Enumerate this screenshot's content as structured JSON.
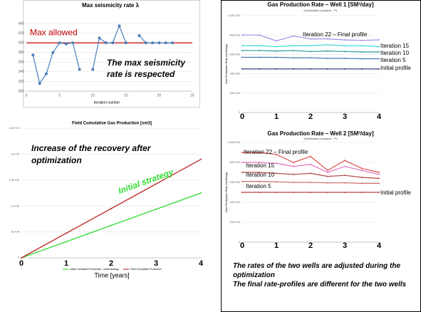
{
  "chart_data": [
    {
      "type": "line",
      "title": "Max seismicity rate λ",
      "x_label": "Iteration number",
      "x": [
        1,
        2,
        3,
        4,
        5,
        6,
        7,
        8,
        9,
        10,
        11,
        12,
        13,
        14,
        15,
        16,
        17,
        18,
        19,
        20,
        21,
        22
      ],
      "values": [
        375,
        316,
        336,
        380,
        400,
        398,
        400,
        345,
        null,
        345,
        410,
        400,
        400,
        435,
        400,
        null,
        415,
        400,
        400,
        400,
        400,
        400
      ],
      "color": "#4a7ebb",
      "xlim": [
        0,
        25
      ],
      "xticks": [
        0,
        5,
        10,
        15,
        20,
        25
      ],
      "ylim": [
        300,
        440
      ],
      "yticks": [
        300,
        320,
        340,
        360,
        380,
        400,
        420,
        440
      ],
      "grid": true,
      "threshold": {
        "label": "Max allowed",
        "value": 400,
        "color": "#c00000"
      },
      "annotations": [
        "The max seismicity rate  is respected"
      ]
    },
    {
      "type": "line",
      "title": "Field Cumulative Gas Production [sm3]",
      "x_label": "Time [years]",
      "x": [
        0,
        1,
        2,
        3,
        4
      ],
      "xlim": [
        0,
        4
      ],
      "xticks": [
        0,
        1,
        2,
        3,
        4
      ],
      "ylim": [
        0,
        2500000000
      ],
      "yticks": [
        0,
        {
          "value": 500000000,
          "label": "5e+08"
        },
        {
          "value": 1000000000,
          "label": "1e+09"
        },
        {
          "value": 1500000000,
          "label": "1.5e+09"
        },
        {
          "value": 2000000000,
          "label": "2e+09"
        },
        {
          "value": 2500000000,
          "label": "2.5e+09"
        }
      ],
      "grid": true,
      "legend": "bottom",
      "series": [
        {
          "name": "Initial Cumulative Production - initial strategy",
          "color": "#33dd33",
          "values": [
            0,
            312500000,
            625000000,
            937500000,
            1250000000
          ]
        },
        {
          "name": "Field Cumulative Production",
          "color": "#c03030",
          "values": [
            0,
            475000000,
            950000000,
            1425000000,
            1900000000
          ]
        }
      ],
      "annotations": [
        "Increase of the recovery after optimization",
        "Initial strategy"
      ]
    },
    {
      "type": "line",
      "title": "Gas Production Rate – Well 1 [SM³/day]",
      "subtitle": "Optimization progress - P1",
      "y_label": "Gas Production Rate (sm3/day)",
      "x": [
        0,
        0.5,
        1,
        1.5,
        2,
        2.5,
        3,
        3.5,
        4
      ],
      "xlim": [
        0,
        4
      ],
      "xticks": [
        0,
        1,
        2,
        3,
        4
      ],
      "ylim": [
        0,
        1000000
      ],
      "yticks": [
        0,
        {
          "value": 200000,
          "label": "200,000"
        },
        {
          "value": 400000,
          "label": "400,000"
        },
        {
          "value": 600000,
          "label": "600,000"
        },
        {
          "value": 800000,
          "label": "800,000"
        },
        {
          "value": 1000000,
          "label": "1,000,000"
        }
      ],
      "grid": true,
      "series": [
        {
          "name": "Iteration 22 – Final profile",
          "color": "#9b8fe8",
          "values": [
            800000,
            800000,
            740000,
            790000,
            760000,
            760000,
            750000,
            745000,
            750000
          ]
        },
        {
          "name": "Iteration 15",
          "color": "#40d8d8",
          "values": [
            690000,
            690000,
            680000,
            690000,
            690000,
            700000,
            690000,
            690000,
            680000
          ]
        },
        {
          "name": "Iteration 10",
          "color": "#2a9a9a",
          "values": [
            640000,
            640000,
            635000,
            640000,
            630000,
            635000,
            630000,
            625000,
            625000
          ]
        },
        {
          "name": "Iteration 5",
          "color": "#4a7abf",
          "values": [
            570000,
            570000,
            570000,
            565000,
            565000,
            560000,
            560000,
            555000,
            555000
          ]
        },
        {
          "name": "Initial profile",
          "color": "#203070",
          "values": [
            450000,
            450000,
            450000,
            450000,
            450000,
            450000,
            450000,
            450000,
            450000
          ]
        }
      ]
    },
    {
      "type": "line",
      "title": "Gas Production Rate – Well 2 [SM³/day]",
      "subtitle": "Optimization progress - P2",
      "y_label": "Gas Production Rate (sm3/day)",
      "x": [
        0,
        0.5,
        1,
        1.5,
        2,
        2.5,
        3,
        3.5,
        4
      ],
      "xlim": [
        0,
        4
      ],
      "xticks": [
        0,
        1,
        2,
        3,
        4
      ],
      "ylim": [
        0,
        1000000
      ],
      "yticks": [
        0,
        {
          "value": 200000,
          "label": "200,000"
        },
        {
          "value": 400000,
          "label": "400,000"
        },
        {
          "value": 600000,
          "label": "600,000"
        },
        {
          "value": 800000,
          "label": "800,000"
        },
        {
          "value": 1000000,
          "label": "1,000,000"
        }
      ],
      "grid": true,
      "series": [
        {
          "name": "Iteration 22 – Final profile",
          "color": "#e05050",
          "values": [
            900000,
            900000,
            880000,
            800000,
            860000,
            720000,
            820000,
            740000,
            700000
          ]
        },
        {
          "name": "Iteration 15",
          "color": "#e070c0",
          "values": [
            800000,
            800000,
            790000,
            760000,
            780000,
            700000,
            760000,
            720000,
            680000
          ]
        },
        {
          "name": "Iteration 10",
          "color": "#b04848",
          "values": [
            700000,
            700000,
            690000,
            680000,
            690000,
            660000,
            670000,
            650000,
            640000
          ]
        },
        {
          "name": "Iteration 5",
          "color": "#d07070",
          "values": [
            610000,
            610000,
            605000,
            600000,
            600000,
            595000,
            595000,
            590000,
            590000
          ]
        },
        {
          "name": "Initial profile",
          "color": "#c04040",
          "values": [
            500000,
            500000,
            500000,
            500000,
            500000,
            500000,
            500000,
            500000,
            500000
          ]
        }
      ]
    }
  ],
  "notes": [
    "The rates of the two wells are adjusted during the optimization",
    "The final rate-profiles are different for the two wells"
  ]
}
